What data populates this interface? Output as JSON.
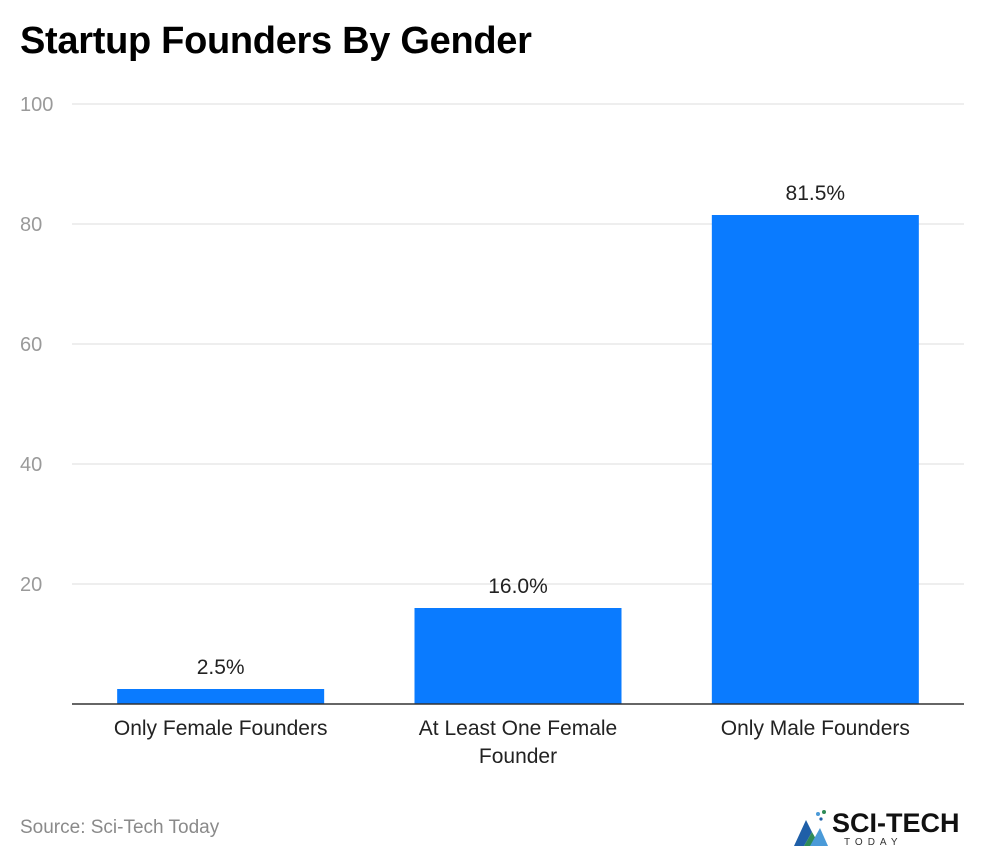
{
  "title": "Startup Founders By Gender",
  "source": "Source: Sci-Tech Today",
  "logo": {
    "text": "SCI-TECH",
    "subtext": "TODAY"
  },
  "colors": {
    "bar": "#0a7bff",
    "grid": "#dddddd",
    "axis": "#333333",
    "tick": "#9a9a9a",
    "label": "#222222"
  },
  "chart_data": {
    "type": "bar",
    "title": "Startup Founders By Gender",
    "categories": [
      [
        "Only Female Founders"
      ],
      [
        "At Least One Female",
        "Founder"
      ],
      [
        "Only Male Founders"
      ]
    ],
    "values": [
      2.5,
      16.0,
      81.5
    ],
    "value_labels": [
      "2.5%",
      "16.0%",
      "81.5%"
    ],
    "ylim": [
      0,
      100
    ],
    "yticks": [
      20,
      40,
      60,
      80,
      100
    ],
    "xlabel": "",
    "ylabel": "",
    "grid": true,
    "legend": "none"
  }
}
